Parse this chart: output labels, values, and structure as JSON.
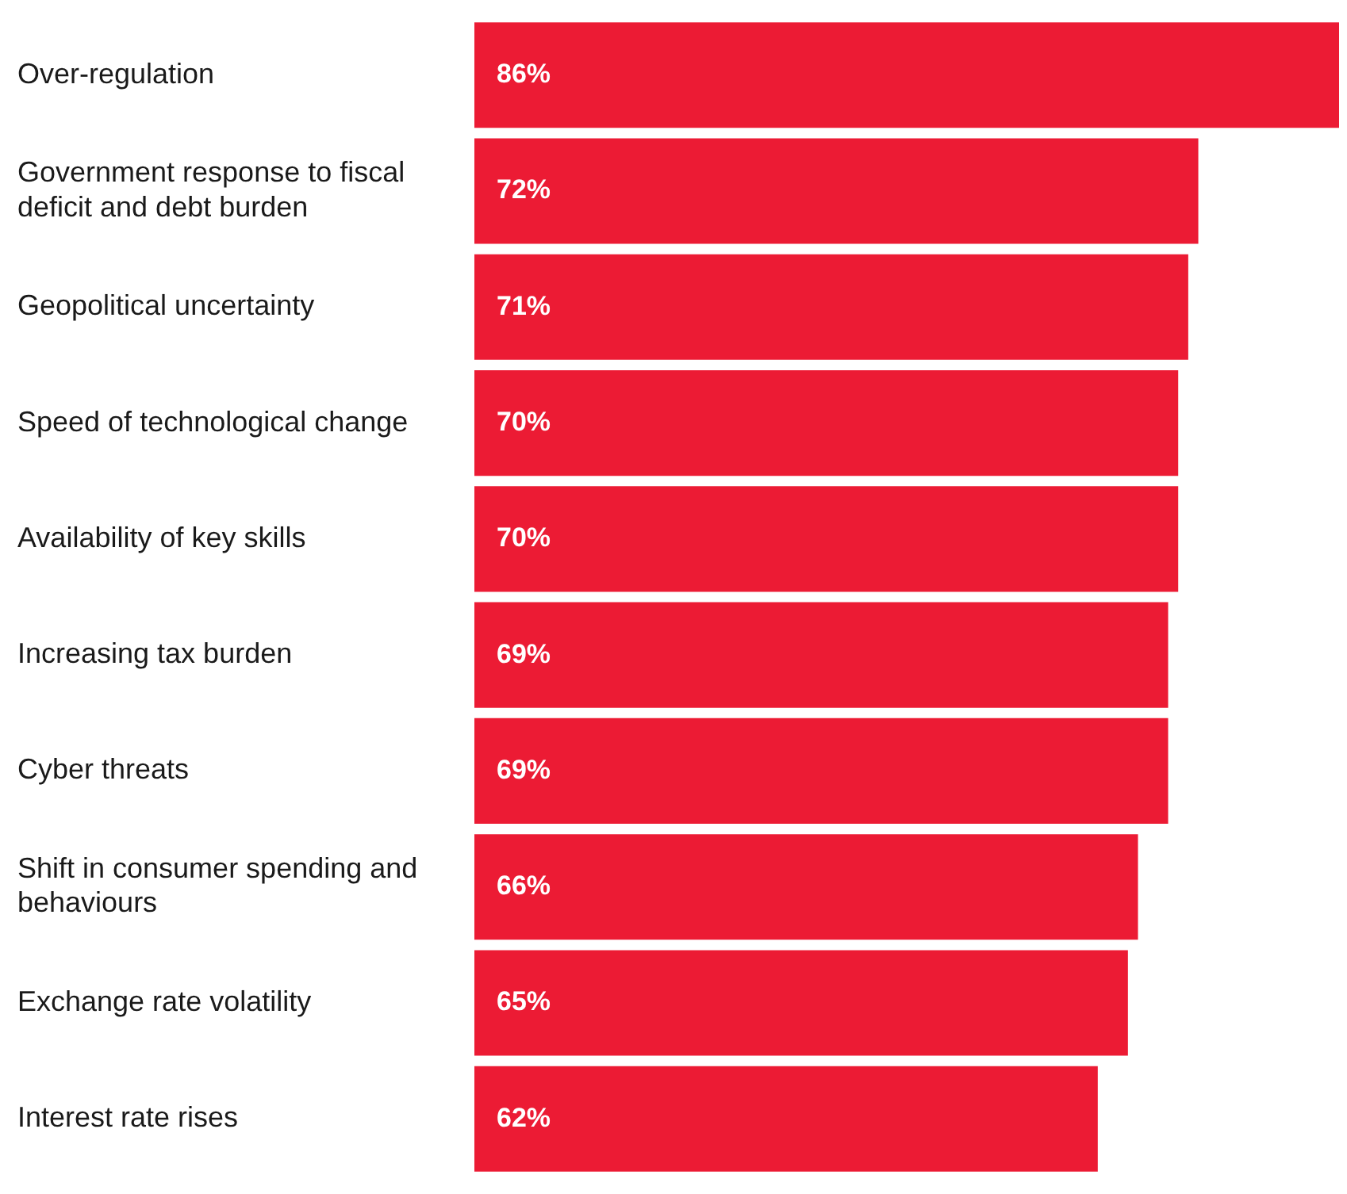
{
  "chart_data": {
    "type": "bar",
    "orientation": "horizontal",
    "categories": [
      "Over-regulation",
      "Government response to fiscal deficit and debt burden",
      "Geopolitical uncertainty",
      "Speed of technological change",
      "Availability of key skills",
      "Increasing tax burden",
      "Cyber threats",
      "Shift in consumer spending and behaviours",
      "Exchange rate volatility",
      "Interest rate rises"
    ],
    "values": [
      86,
      72,
      71,
      70,
      70,
      69,
      69,
      66,
      65,
      62
    ],
    "value_labels": [
      "86%",
      "72%",
      "71%",
      "70%",
      "70%",
      "69%",
      "69%",
      "66%",
      "65%",
      "62%"
    ],
    "color": "#ec1b34",
    "legend": false,
    "tick_labels": "y"
  }
}
